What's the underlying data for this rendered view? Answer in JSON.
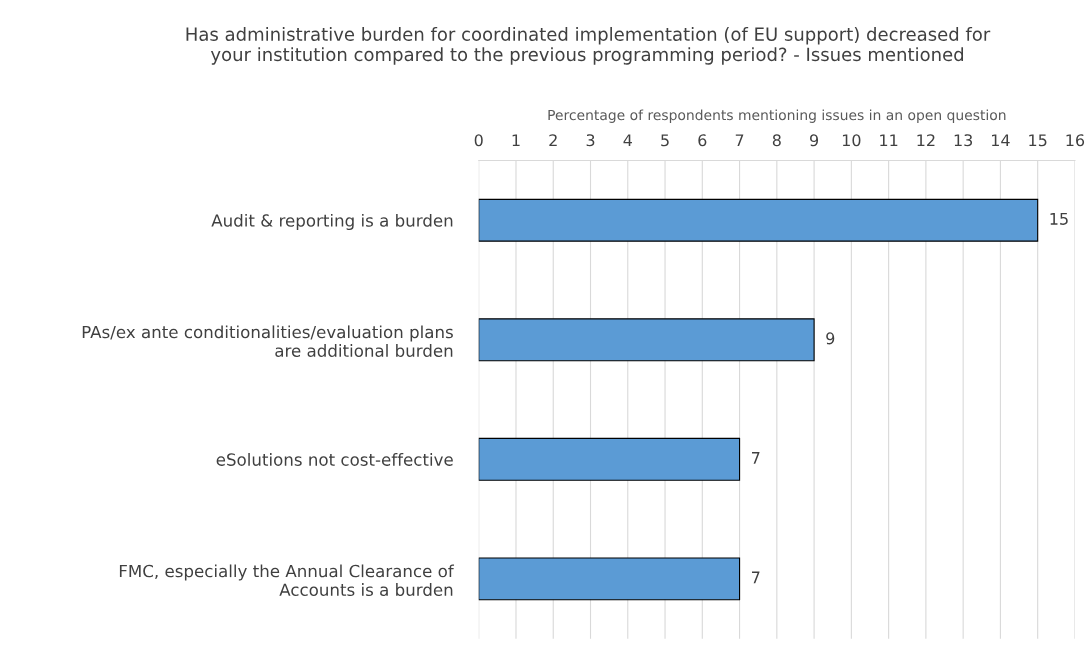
{
  "chart_data": {
    "type": "bar",
    "orientation": "horizontal",
    "title": "Has administrative burden for coordinated implementation (of EU support) decreased for\nyour institution compared to the previous programming period? - Issues mentioned",
    "xlabel": "Percentage of respondents mentioning issues in an open question",
    "categories": [
      "Audit & reporting is a burden",
      "PAs/ex ante conditionalities/evaluation plans\nare additional burden",
      "eSolutions not cost-effective",
      "FMC, especially the Annual Clearance of\nAccounts is a burden"
    ],
    "values": [
      15,
      9,
      7,
      7
    ],
    "color": "#5b9bd5",
    "xlim": [
      0,
      16
    ],
    "xticks": [
      0,
      1,
      2,
      3,
      4,
      5,
      6,
      7,
      8,
      9,
      10,
      11,
      12,
      13,
      14,
      15,
      16
    ],
    "grid": "x",
    "data_labels": true
  }
}
